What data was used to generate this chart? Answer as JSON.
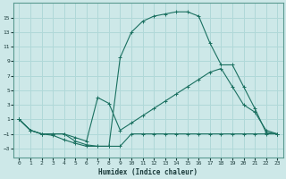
{
  "xlabel": "Humidex (Indice chaleur)",
  "bg_color": "#cde8e8",
  "grid_color": "#b0d8d8",
  "line_color": "#1a7060",
  "xlim": [
    -0.5,
    23.5
  ],
  "ylim": [
    -4.2,
    17
  ],
  "xticks": [
    0,
    1,
    2,
    3,
    4,
    5,
    6,
    7,
    8,
    9,
    10,
    11,
    12,
    13,
    14,
    15,
    16,
    17,
    18,
    19,
    20,
    21,
    22,
    23
  ],
  "yticks": [
    -3,
    -1,
    1,
    3,
    5,
    7,
    9,
    11,
    13,
    15
  ],
  "line1_x": [
    0,
    1,
    2,
    3,
    4,
    5,
    6,
    7,
    8,
    9,
    10,
    11,
    12,
    13,
    14,
    15,
    16,
    17,
    18,
    19,
    20,
    21,
    22,
    23
  ],
  "line1_y": [
    1.0,
    -0.5,
    -1.0,
    -1.0,
    -1.0,
    -2.0,
    -2.5,
    -2.7,
    -2.7,
    9.5,
    13.0,
    14.5,
    15.2,
    15.5,
    15.8,
    15.8,
    15.2,
    11.5,
    8.5,
    8.5,
    5.5,
    2.5,
    -0.8,
    -1.0
  ],
  "line2_x": [
    0,
    1,
    2,
    3,
    4,
    5,
    6,
    7,
    8,
    9,
    10,
    11,
    12,
    13,
    14,
    15,
    16,
    17,
    18,
    19,
    20,
    21,
    22,
    23
  ],
  "line2_y": [
    1.0,
    -0.5,
    -1.0,
    -1.0,
    -1.0,
    -1.5,
    -2.0,
    4.0,
    3.2,
    -0.5,
    0.5,
    1.5,
    2.5,
    3.5,
    4.5,
    5.5,
    6.5,
    7.5,
    8.0,
    5.5,
    3.0,
    2.0,
    -0.5,
    -1.0
  ],
  "line3_x": [
    0,
    1,
    2,
    3,
    4,
    5,
    6,
    7,
    8,
    9,
    10,
    11,
    12,
    13,
    14,
    15,
    16,
    17,
    18,
    19,
    20,
    21,
    22,
    23
  ],
  "line3_y": [
    1.0,
    -0.5,
    -1.0,
    -1.2,
    -1.8,
    -2.3,
    -2.7,
    -2.7,
    -2.7,
    -2.7,
    -1.0,
    -1.0,
    -1.0,
    -1.0,
    -1.0,
    -1.0,
    -1.0,
    -1.0,
    -1.0,
    -1.0,
    -1.0,
    -1.0,
    -1.0,
    -1.0
  ]
}
